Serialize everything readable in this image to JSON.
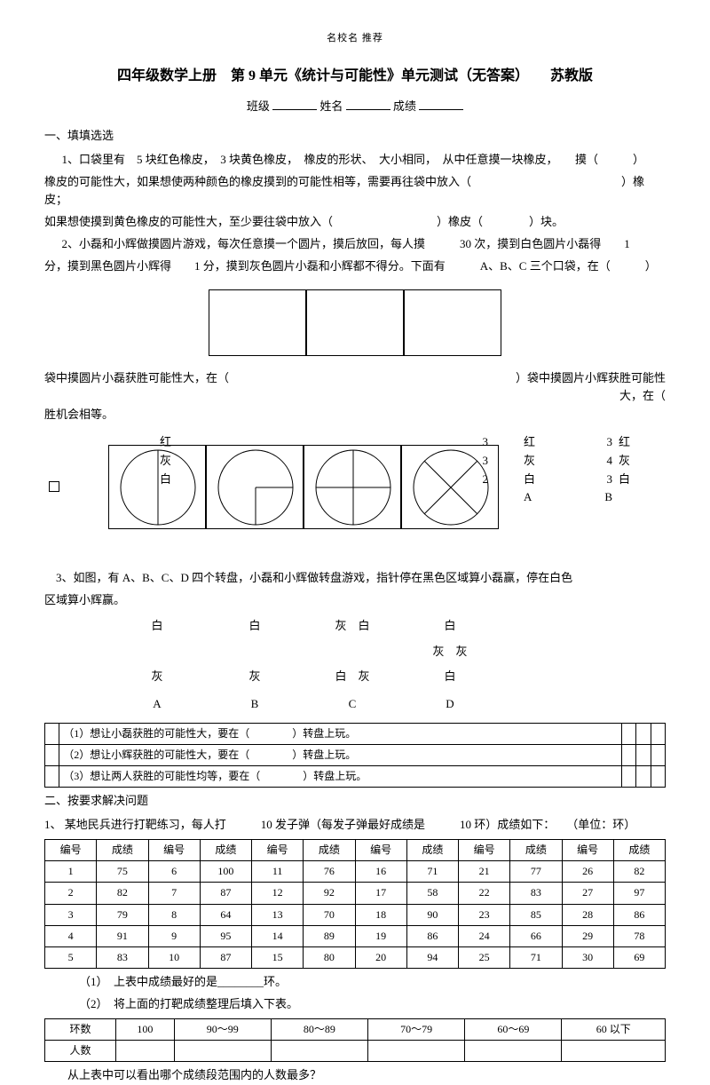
{
  "header_dots": "名校名 推荐",
  "title": "四年级数学上册　第 9 单元《统计与可能性》单元测试（无答案）　　苏教版",
  "form": {
    "class_label": "班级",
    "name_label": "姓名",
    "score_label": "成绩"
  },
  "sec1": {
    "heading": "一、填填选选",
    "q1a": "1、口袋里有　5 块红色橡皮，　3 块黄色橡皮，　橡皮的形状、　大小相同，　从中任意摸一块橡皮，　　摸（　　　）",
    "q1b": "橡皮的可能性大，如果想使两种颜色的橡皮摸到的可能性相等，需要再往袋中放入（　　　　　　　　　　　　　）橡皮；",
    "q1c": "如果想使摸到黄色橡皮的可能性大，至少要往袋中放入（　　　　　　　　　）橡皮（　　　　）块。",
    "q2a": "2、小磊和小辉做摸圆片游戏，每次任意摸一个圆片，摸后放回，每人摸　　　30 次，摸到白色圆片小磊得　　1",
    "q2b": "分，摸到黑色圆片小辉得　　1 分，摸到灰色圆片小磊和小辉都不得分。下面有　　　A、B、C 三个口袋，在（　　　）",
    "q2c_left": "袋中摸圆片小磊获胜可能性大，在（",
    "q2c_right1": "）袋中摸圆片小辉获胜可能性",
    "q2c_right2": "大，在（",
    "q2d": "胜机会相等。"
  },
  "color_block": {
    "left": [
      "红",
      "灰",
      "白"
    ],
    "mid_nums": [
      "3",
      "3",
      "2"
    ],
    "right_col1": [
      "红",
      "灰",
      "白",
      "A"
    ],
    "right_nums": [
      "3",
      "4",
      "3",
      "B"
    ],
    "right_edge": [
      "红",
      "灰",
      "白",
      ""
    ]
  },
  "q3": {
    "line1": "3、如图，有 A、B、C、D 四个转盘，小磊和小辉做转盘游戏，指针停在黑色区域算小磊赢，停在白色",
    "line2": "区域算小辉赢。",
    "labels_row1": [
      "白",
      "白",
      "灰　白",
      "白"
    ],
    "labels_row2": [
      "",
      "",
      "",
      "灰　灰"
    ],
    "labels_row3": [
      "灰",
      "灰",
      "白　灰",
      "白"
    ],
    "labels_abcd": [
      "A",
      "B",
      "C",
      "D"
    ],
    "sub1": "（1）想让小磊获胜的可能性大，要在（　　　　）转盘上玩。",
    "sub2": "（2）想让小辉获胜的可能性大，要在（　　　　）转盘上玩。",
    "sub3": "（3）想让两人获胜的可能性均等，要在（　　　　）转盘上玩。"
  },
  "sec2": {
    "heading": "二、按要求解决问题",
    "q1": "1、  某地民兵进行打靶练习，每人打　　　10 发子弹（每发子弹最好成绩是　　　10 环）成绩如下：　　（单位：环）",
    "table_headers": [
      "编号",
      "成绩",
      "编号",
      "成绩",
      "编号",
      "成绩",
      "编号",
      "成绩",
      "编号",
      "成绩",
      "编号",
      "成绩"
    ],
    "rows": [
      [
        "1",
        "75",
        "6",
        "100",
        "11",
        "76",
        "16",
        "71",
        "21",
        "77",
        "26",
        "82"
      ],
      [
        "2",
        "82",
        "7",
        "87",
        "12",
        "92",
        "17",
        "58",
        "22",
        "83",
        "27",
        "97"
      ],
      [
        "3",
        "79",
        "8",
        "64",
        "13",
        "70",
        "18",
        "90",
        "23",
        "85",
        "28",
        "86"
      ],
      [
        "4",
        "91",
        "9",
        "95",
        "14",
        "89",
        "19",
        "86",
        "24",
        "66",
        "29",
        "78"
      ],
      [
        "5",
        "83",
        "10",
        "87",
        "15",
        "80",
        "20",
        "94",
        "25",
        "71",
        "30",
        "69"
      ]
    ],
    "sub1": "（1）　上表中成绩最好的是________环。",
    "sub2": "（2）　将上面的打靶成绩整理后填入下表。",
    "ring_headers": [
      "环数",
      "100",
      "90～99",
      "80～89",
      "70～79",
      "60～69",
      "60 以下"
    ],
    "ring_row_label": "人数",
    "sub3": "从上表中可以看出哪个成绩段范围内的人数最多？"
  }
}
